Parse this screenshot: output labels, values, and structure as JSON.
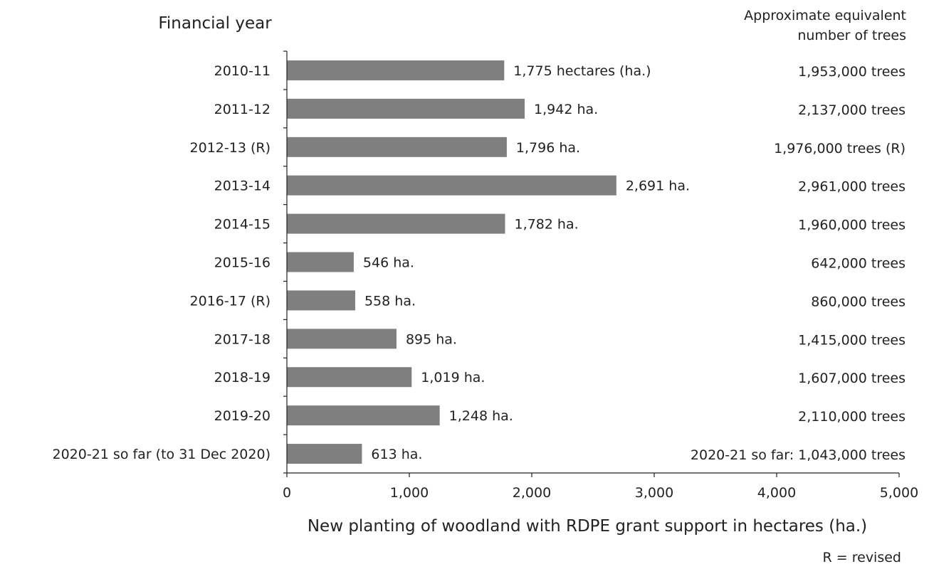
{
  "chart_data": {
    "type": "bar",
    "orientation": "horizontal",
    "title": "",
    "y_header": "Financial year",
    "right_header": [
      "Approximate equivalent",
      "number of trees"
    ],
    "xlabel": "New planting of woodland with RDPE grant support in hectares (ha.)",
    "footnote": "R = revised",
    "xlim": [
      0,
      5000
    ],
    "x_ticks": [
      "0",
      "1,000",
      "2,000",
      "3,000",
      "4,000",
      "5,000"
    ],
    "x_tick_values": [
      0,
      1000,
      2000,
      3000,
      4000,
      5000
    ],
    "grid": false,
    "bar_color": "#7f7f7f",
    "categories": [
      "2010-11",
      "2011-12",
      "2012-13 (R)",
      "2013-14",
      "2014-15",
      "2015-16",
      "2016-17 (R)",
      "2017-18",
      "2018-19",
      "2019-20",
      "2020-21 so far (to 31 Dec 2020)"
    ],
    "values": [
      1775,
      1942,
      1796,
      2691,
      1782,
      546,
      558,
      895,
      1019,
      1248,
      613
    ],
    "value_labels": [
      "1,775 hectares (ha.)",
      "1,942 ha.",
      "1,796 ha.",
      "2,691 ha.",
      "1,782 ha.",
      "546 ha.",
      "558 ha.",
      "895 ha.",
      "1,019 ha.",
      "1,248 ha.",
      "613 ha."
    ],
    "tree_labels": [
      "1,953,000 trees",
      "2,137,000 trees",
      "1,976,000 trees (R)",
      "2,961,000 trees",
      "1,960,000 trees",
      "642,000 trees",
      "860,000 trees",
      "1,415,000 trees",
      "1,607,000 trees",
      "2,110,000 trees",
      "2020-21 so far: 1,043,000 trees"
    ]
  }
}
